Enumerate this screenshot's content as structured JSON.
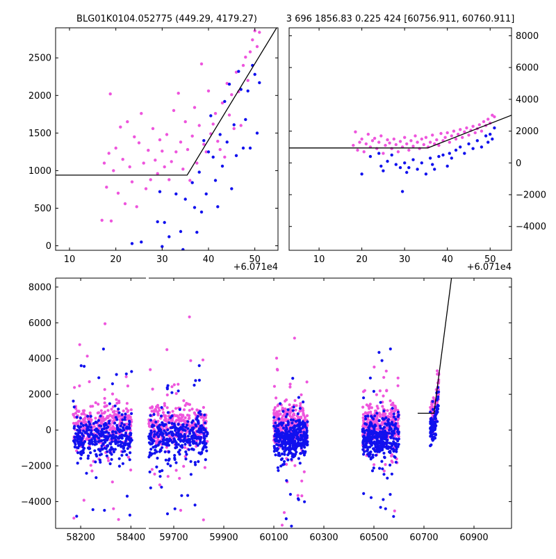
{
  "figure": {
    "title_left": "BLG01K0104.052775 (449.29, 4179.27)",
    "title_right": "3 696 1856.83 0.225 424 [60756.911, 60760.911]"
  },
  "colors": {
    "series_a": "#ee55dd",
    "series_b": "#1111ee",
    "model_line": "#000000",
    "frame": "#000000"
  },
  "chart_data": [
    {
      "type": "scatter",
      "panel": "top-left",
      "xlim": [
        7,
        55
      ],
      "ylim": [
        -60,
        2900
      ],
      "x_offset_label": "+6.071e4",
      "xticks": [
        10,
        20,
        30,
        40,
        50
      ],
      "yticks": [
        0,
        500,
        1000,
        1500,
        2000,
        2500
      ],
      "yaxis_side": "left",
      "series": [
        {
          "color": "series_a",
          "points": [
            [
              17,
              340
            ],
            [
              17.5,
              1100
            ],
            [
              18,
              780
            ],
            [
              18.5,
              1230
            ],
            [
              18.8,
              2020
            ],
            [
              19,
              330
            ],
            [
              19.5,
              1000
            ],
            [
              20,
              1300
            ],
            [
              20.5,
              700
            ],
            [
              21,
              1580
            ],
            [
              21.5,
              1150
            ],
            [
              22,
              560
            ],
            [
              22.5,
              1650
            ],
            [
              23,
              1050
            ],
            [
              23.5,
              850
            ],
            [
              24,
              1450
            ],
            [
              24.5,
              520
            ],
            [
              25,
              1370
            ],
            [
              25.5,
              1760
            ],
            [
              26,
              1100
            ],
            [
              26.5,
              760
            ],
            [
              27,
              1270
            ],
            [
              27.5,
              880
            ],
            [
              28,
              1560
            ],
            [
              28.5,
              1140
            ],
            [
              29,
              960
            ],
            [
              29.5,
              1410
            ],
            [
              30,
              1260
            ],
            [
              30.5,
              1050
            ],
            [
              31,
              1480
            ],
            [
              31.5,
              880
            ],
            [
              32,
              1120
            ],
            [
              32.5,
              1800
            ],
            [
              33,
              1250
            ],
            [
              33.5,
              2030
            ],
            [
              34,
              1380
            ],
            [
              34.5,
              1020
            ],
            [
              35,
              1650
            ],
            [
              35.5,
              1280
            ],
            [
              36,
              870
            ],
            [
              36.5,
              1460
            ],
            [
              37,
              1840
            ],
            [
              37.5,
              1100
            ],
            [
              38,
              1600
            ],
            [
              38.5,
              2420
            ],
            [
              39,
              1350
            ],
            [
              39.5,
              1250
            ],
            [
              40,
              2060
            ],
            [
              40.5,
              1490
            ],
            [
              41,
              1620
            ],
            [
              41.5,
              1760
            ],
            [
              42,
              1390
            ],
            [
              42.5,
              1280
            ],
            [
              43,
              1900
            ],
            [
              43.5,
              1180
            ],
            [
              44,
              2160
            ],
            [
              44.5,
              1740
            ],
            [
              45,
              2010
            ],
            [
              45.5,
              1560
            ],
            [
              46,
              2310
            ],
            [
              46.5,
              2050
            ],
            [
              47,
              1600
            ],
            [
              47.5,
              2400
            ],
            [
              48,
              2510
            ],
            [
              48.5,
              2200
            ],
            [
              49,
              2580
            ],
            [
              49.5,
              2740
            ],
            [
              50,
              2860
            ],
            [
              50.5,
              2650
            ],
            [
              51,
              2840
            ]
          ]
        },
        {
          "color": "series_b",
          "points": [
            [
              23.5,
              30
            ],
            [
              25.5,
              50
            ],
            [
              28,
              -120
            ],
            [
              29,
              320
            ],
            [
              29.5,
              720
            ],
            [
              30,
              -10
            ],
            [
              30.5,
              310
            ],
            [
              31.5,
              120
            ],
            [
              33,
              690
            ],
            [
              34,
              190
            ],
            [
              34.5,
              -50
            ],
            [
              35,
              620
            ],
            [
              36.5,
              840
            ],
            [
              37,
              510
            ],
            [
              37.5,
              180
            ],
            [
              38,
              980
            ],
            [
              38.5,
              450
            ],
            [
              39,
              1400
            ],
            [
              39.5,
              690
            ],
            [
              40,
              1250
            ],
            [
              40.5,
              1730
            ],
            [
              41,
              1180
            ],
            [
              41.5,
              870
            ],
            [
              42,
              520
            ],
            [
              42.5,
              1480
            ],
            [
              43,
              1060
            ],
            [
              43.5,
              1920
            ],
            [
              44,
              1380
            ],
            [
              44.5,
              2150
            ],
            [
              45,
              760
            ],
            [
              45.5,
              1610
            ],
            [
              46,
              1200
            ],
            [
              46.5,
              2320
            ],
            [
              47,
              2080
            ],
            [
              47.5,
              1300
            ],
            [
              48,
              1680
            ],
            [
              48.5,
              2060
            ],
            [
              49,
              1300
            ],
            [
              49.5,
              2400
            ],
            [
              50,
              2280
            ],
            [
              50.5,
              1500
            ],
            [
              51,
              2170
            ]
          ]
        }
      ],
      "model_line": [
        [
          7,
          940
        ],
        [
          35.4,
          940
        ],
        [
          55,
          2930
        ]
      ]
    },
    {
      "type": "scatter",
      "panel": "top-right",
      "xlim": [
        3,
        55
      ],
      "ylim": [
        -5500,
        8500
      ],
      "x_offset_label": "+6.071e4",
      "xticks": [
        10,
        20,
        30,
        40,
        50
      ],
      "yticks": [
        -4000,
        -2000,
        0,
        2000,
        4000,
        6000,
        8000
      ],
      "yaxis_side": "right",
      "series": [
        {
          "color": "series_a",
          "points": [
            [
              18,
              1100
            ],
            [
              18.5,
              1950
            ],
            [
              19,
              800
            ],
            [
              19.5,
              1300
            ],
            [
              20,
              1500
            ],
            [
              20.5,
              700
            ],
            [
              21,
              1200
            ],
            [
              21.5,
              1800
            ],
            [
              22,
              1000
            ],
            [
              22.5,
              1400
            ],
            [
              23,
              1550
            ],
            [
              23.5,
              900
            ],
            [
              24,
              1300
            ],
            [
              24.5,
              1700
            ],
            [
              25,
              600
            ],
            [
              25.5,
              1100
            ],
            [
              26,
              1450
            ],
            [
              26.5,
              1250
            ],
            [
              27,
              900
            ],
            [
              27.5,
              1500
            ],
            [
              28,
              1150
            ],
            [
              28.5,
              700
            ],
            [
              29,
              1350
            ],
            [
              29.5,
              1000
            ],
            [
              30,
              1600
            ],
            [
              30.5,
              1200
            ],
            [
              31,
              800
            ],
            [
              31.5,
              1400
            ],
            [
              32,
              1050
            ],
            [
              32.5,
              1700
            ],
            [
              33,
              1300
            ],
            [
              33.5,
              900
            ],
            [
              34,
              1500
            ],
            [
              34.5,
              1150
            ],
            [
              35,
              1600
            ],
            [
              35.5,
              1000
            ],
            [
              36,
              1300
            ],
            [
              36.5,
              1750
            ],
            [
              37,
              1200
            ],
            [
              37.5,
              1450
            ],
            [
              38,
              1100
            ],
            [
              38.5,
              1850
            ],
            [
              39,
              1400
            ],
            [
              39.5,
              1600
            ],
            [
              40,
              1900
            ],
            [
              40.5,
              1300
            ],
            [
              41,
              1700
            ],
            [
              41.5,
              2000
            ],
            [
              42,
              1500
            ],
            [
              42.5,
              1800
            ],
            [
              43,
              2100
            ],
            [
              43.5,
              1600
            ],
            [
              44,
              1950
            ],
            [
              44.5,
              2200
            ],
            [
              45,
              1750
            ],
            [
              45.5,
              2050
            ],
            [
              46,
              2300
            ],
            [
              46.5,
              1900
            ],
            [
              47,
              2150
            ],
            [
              47.5,
              2400
            ],
            [
              48,
              2000
            ],
            [
              48.5,
              2600
            ],
            [
              49,
              2350
            ],
            [
              49.5,
              2750
            ],
            [
              50,
              2500
            ],
            [
              50.5,
              3000
            ],
            [
              51,
              2900
            ]
          ]
        },
        {
          "color": "series_b",
          "points": [
            [
              20,
              -700
            ],
            [
              22,
              400
            ],
            [
              24,
              600
            ],
            [
              24.5,
              -200
            ],
            [
              25,
              -500
            ],
            [
              26,
              100
            ],
            [
              27,
              500
            ],
            [
              28,
              -100
            ],
            [
              29,
              -300
            ],
            [
              29.5,
              -1800
            ],
            [
              30,
              0
            ],
            [
              30.5,
              -600
            ],
            [
              31,
              -300
            ],
            [
              32,
              200
            ],
            [
              33,
              -400
            ],
            [
              34,
              0
            ],
            [
              35,
              -700
            ],
            [
              36,
              300
            ],
            [
              36.5,
              -100
            ],
            [
              37,
              -400
            ],
            [
              38,
              400
            ],
            [
              39,
              500
            ],
            [
              40,
              -200
            ],
            [
              40.5,
              600
            ],
            [
              41,
              300
            ],
            [
              42,
              800
            ],
            [
              43,
              1000
            ],
            [
              44,
              600
            ],
            [
              45,
              1200
            ],
            [
              46,
              900
            ],
            [
              47,
              1400
            ],
            [
              48,
              1000
            ],
            [
              49,
              1700
            ],
            [
              49.5,
              1300
            ],
            [
              50,
              1800
            ],
            [
              50.5,
              1500
            ],
            [
              51,
              2200
            ]
          ]
        }
      ],
      "model_line": [
        [
          3,
          940
        ],
        [
          35.4,
          940
        ],
        [
          55,
          3000
        ]
      ]
    },
    {
      "type": "scatter",
      "panel": "bottom",
      "ylim": [
        -5500,
        8500
      ],
      "yticks": [
        -4000,
        -2000,
        0,
        2000,
        4000,
        6000,
        8000
      ],
      "yaxis_side": "left",
      "segments": [
        {
          "xlim": [
            58100,
            58460
          ],
          "xticks": [
            58200,
            58400
          ]
        },
        {
          "xlim": [
            59600,
            61050
          ],
          "xticks": [
            59700,
            59900,
            60100,
            60300,
            60500,
            60700,
            60900
          ]
        }
      ],
      "seasons": [
        [
          58170,
          58405
        ],
        [
          59600,
          59835
        ],
        [
          60100,
          60235
        ],
        [
          60455,
          60600
        ],
        [
          60725,
          60760
        ]
      ],
      "series_colors": [
        "series_a",
        "series_b"
      ],
      "model_line": [
        [
          60675,
          940
        ],
        [
          60740,
          940
        ],
        [
          60810,
          8500
        ]
      ]
    }
  ]
}
